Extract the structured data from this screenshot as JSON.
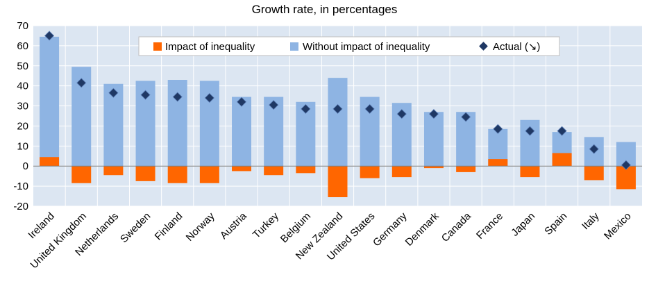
{
  "chart_data": {
    "type": "bar",
    "title": "Growth rate, in percentages",
    "xlabel": "",
    "ylabel": "",
    "ylim": [
      -20,
      70
    ],
    "yticks": [
      70,
      60,
      50,
      40,
      30,
      20,
      10,
      0,
      -10,
      -20
    ],
    "grid": true,
    "legend_position": "top-right",
    "categories": [
      "Ireland",
      "United Kingdom",
      "Netherlands",
      "Sweden",
      "Finland",
      "Norway",
      "Austria",
      "Turkey",
      "Belgium",
      "New Zealand",
      "United States",
      "Germany",
      "Denmark",
      "Canada",
      "France",
      "Japan",
      "Spain",
      "Italy",
      "Mexico"
    ],
    "series": [
      {
        "name": "Impact of inequality",
        "kind": "bar",
        "color": "#ff6600",
        "values": [
          4.5,
          -8.5,
          -4.5,
          -7.5,
          -8.5,
          -8.5,
          -2.5,
          -4.5,
          -3.5,
          -15.5,
          -6.0,
          -5.5,
          -1.0,
          -3.0,
          3.5,
          -5.5,
          6.5,
          -7.0,
          -11.5
        ]
      },
      {
        "name": "Without impact of inequality",
        "kind": "bar",
        "color": "#8eb4e3",
        "values": [
          64.5,
          49.5,
          41.0,
          42.5,
          43.0,
          42.5,
          34.5,
          34.5,
          32.0,
          44.0,
          34.5,
          31.5,
          27.0,
          27.0,
          18.5,
          23.0,
          17.0,
          14.5,
          12.0
        ]
      },
      {
        "name": "Actual (↘)",
        "kind": "marker",
        "color": "#1f3864",
        "values": [
          65.0,
          41.5,
          36.5,
          35.5,
          34.5,
          34.0,
          32.0,
          30.5,
          28.5,
          28.5,
          28.5,
          26.0,
          26.0,
          24.5,
          18.5,
          17.5,
          17.5,
          8.5,
          0.5
        ]
      }
    ]
  }
}
